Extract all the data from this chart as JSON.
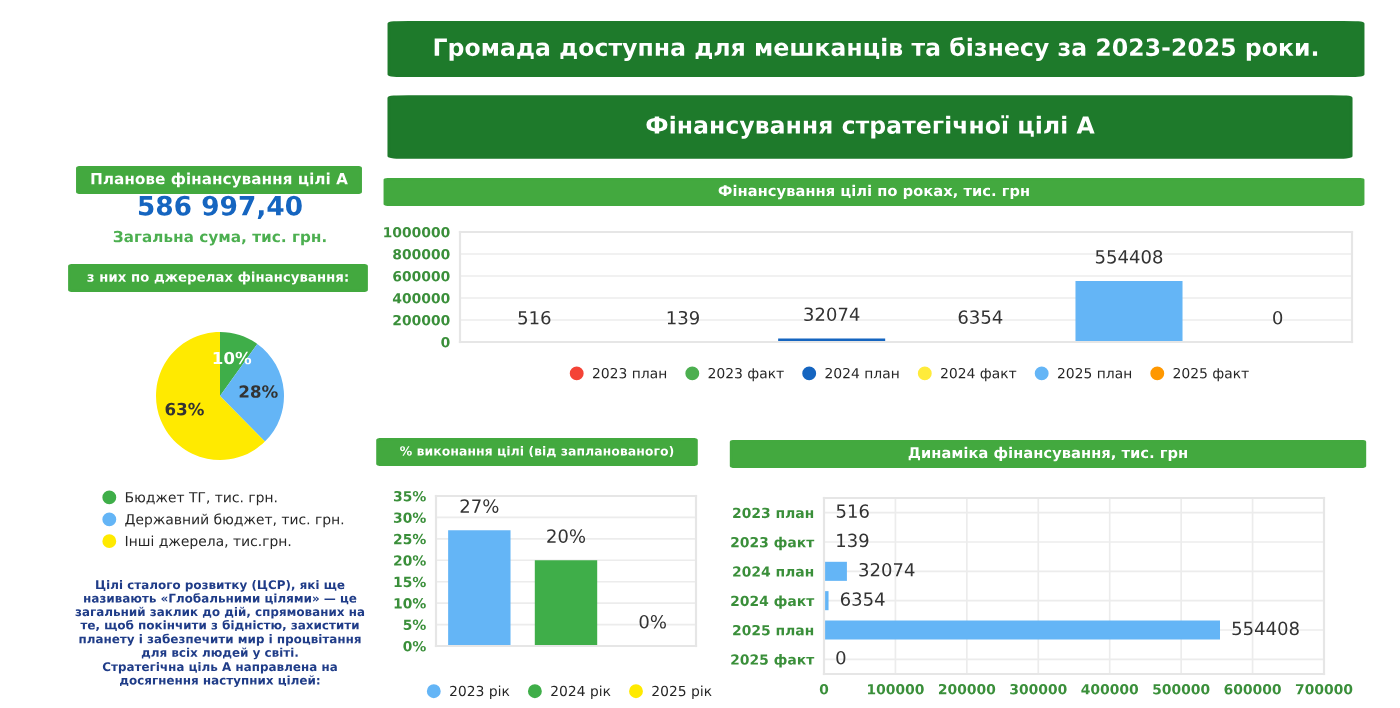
{
  "chart_data": [
    {
      "type": "other",
      "title": "Громада доступна для мешканців та бізнесу за 2023-2025 роки.",
      "subtitle": "Фінансування стратегічної цілі А"
    },
    {
      "type": "other",
      "title": "Планове фінансування цілі А",
      "annotations": [
        "586 997,40",
        "Загальна сума, тис. грн."
      ]
    },
    {
      "type": "pie",
      "title": "з них по джерелах фінансування:",
      "categories": [
        "Бюджет ТГ, тис. грн.",
        "Державний бюджет, тис. грн.",
        "Інші джерела, тис.грн."
      ],
      "values": [
        10,
        28,
        63
      ],
      "colors": [
        "#3fae49",
        "#64b5f6",
        "#ffea00"
      ],
      "value_labels": [
        "10%",
        "28%",
        "63%"
      ],
      "legend": "bottom"
    },
    {
      "type": "other",
      "annotations": [
        "Цілі сталого розвитку (ЦСР), які ще називають «Глобальними цілями» — це загальний заклик до дій, спрямованих на те, щоб покінчити з бідністю, захистити планету і забезпечити мир і процвітання для всіх людей у світі.",
        "Стратегічна ціль А направлена на досягнення наступних цілей:"
      ]
    },
    {
      "type": "bar",
      "title": "Фінансування цілі по роках, тис. грн",
      "categories": [
        null,
        null,
        null,
        null,
        null,
        null
      ],
      "series": [
        {
          "name": "2023 план",
          "color": "#f44336",
          "values": [
            516,
            null,
            null,
            null,
            null,
            null
          ]
        },
        {
          "name": "2023 факт",
          "color": "#4caf50",
          "values": [
            null,
            139,
            null,
            null,
            null,
            null
          ]
        },
        {
          "name": "2024 план",
          "color": "#1565c0",
          "values": [
            null,
            null,
            32074,
            null,
            null,
            null
          ]
        },
        {
          "name": "2024 факт",
          "color": "#ffeb3b",
          "values": [
            null,
            null,
            null,
            6354,
            null,
            null
          ]
        },
        {
          "name": "2025 план",
          "color": "#64b5f6",
          "values": [
            null,
            null,
            null,
            null,
            554408,
            null
          ]
        },
        {
          "name": "2025 факт",
          "color": "#ff9800",
          "values": [
            null,
            null,
            null,
            null,
            null,
            0
          ]
        }
      ],
      "ylim": [
        0,
        1000000
      ],
      "yticks": [
        0,
        200000,
        400000,
        600000,
        800000,
        1000000
      ],
      "grid": "y",
      "data_labels": true,
      "legend": "bottom"
    },
    {
      "type": "bar",
      "title": "% виконання цілі (від запланованого)",
      "categories": [
        null,
        null,
        null
      ],
      "series": [
        {
          "name": "2023 рік",
          "color": "#64b5f6",
          "values": [
            27,
            null,
            null
          ],
          "value_labels": [
            "27%",
            null,
            null
          ]
        },
        {
          "name": "2024 рік",
          "color": "#3fae49",
          "values": [
            null,
            20,
            null
          ],
          "value_labels": [
            null,
            "20%",
            null
          ]
        },
        {
          "name": "2025 рік",
          "color": "#ffea00",
          "values": [
            null,
            null,
            0
          ],
          "value_labels": [
            null,
            null,
            "0%"
          ]
        }
      ],
      "ylim": [
        0,
        35
      ],
      "yticks": [
        {
          "value": 0,
          "label": "0%"
        },
        {
          "value": 5,
          "label": "5%"
        },
        {
          "value": 10,
          "label": "10%"
        },
        {
          "value": 15,
          "label": "15%"
        },
        {
          "value": 20,
          "label": "20%"
        },
        {
          "value": 25,
          "label": "25%"
        },
        {
          "value": 30,
          "label": "30%"
        },
        {
          "value": 35,
          "label": "35%"
        }
      ],
      "grid": "y",
      "legend": "bottom"
    },
    {
      "type": "bar",
      "title": "Динаміка фінансування, тис. грн",
      "orientation": "horizontal",
      "categories": [
        "2023 план",
        "2023 факт",
        "2024 план",
        "2024 факт",
        "2025 план",
        "2025 факт"
      ],
      "values": [
        516,
        139,
        32074,
        6354,
        554408,
        0
      ],
      "color": "#64b5f6",
      "xlim": [
        0,
        700000
      ],
      "xticks": [
        0,
        100000,
        200000,
        300000,
        400000,
        500000,
        600000,
        700000
      ],
      "grid": true,
      "data_labels": true
    }
  ]
}
